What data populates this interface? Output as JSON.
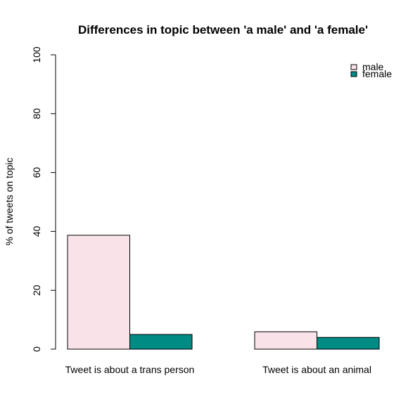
{
  "chart_data": {
    "type": "bar",
    "title": "Differences in topic between 'a male' and 'a female'",
    "xlabel": "",
    "ylabel": "% of tweets on topic",
    "ylim": [
      0,
      100
    ],
    "yticks": [
      0,
      20,
      40,
      60,
      80,
      100
    ],
    "categories": [
      "Tweet is about a trans person",
      "Tweet is about an animal"
    ],
    "series": [
      {
        "name": "male",
        "color": "#f9e3e8",
        "values": [
          38.7,
          5.9
        ]
      },
      {
        "name": "female",
        "color": "#008b84",
        "values": [
          5.0,
          4.0
        ]
      }
    ],
    "grid": false,
    "legend_position": "top-right"
  }
}
